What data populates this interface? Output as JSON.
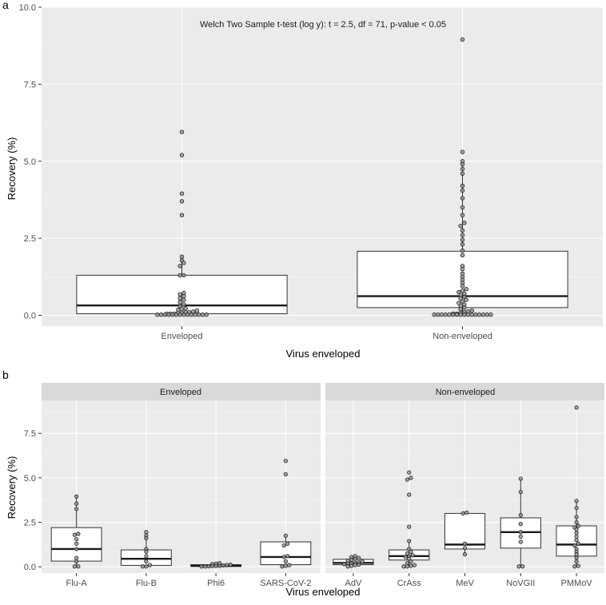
{
  "chart_data": [
    {
      "panel_label": "a",
      "type": "boxplot",
      "title": "",
      "annotation": "Welch Two Sample t-test (log y): t = 2.5, df = 71, p-value < 0.05",
      "xlabel": "Virus enveloped",
      "ylabel": "Recovery (%)",
      "ylim": [
        -0.35,
        10.0
      ],
      "yticks": [
        0.0,
        2.5,
        5.0,
        7.5,
        10.0
      ],
      "ytick_labels": [
        "0.0",
        "2.5",
        "5.0",
        "7.5",
        "10.0"
      ],
      "categories": [
        "Enveloped",
        "Non-enveloped"
      ],
      "boxes": [
        {
          "q1": 0.05,
          "median": 0.32,
          "q3": 1.3,
          "whisker_low": 0.02,
          "whisker_high": 1.9
        },
        {
          "q1": 0.25,
          "median": 0.62,
          "q3": 2.08,
          "whisker_low": 0.02,
          "whisker_high": 4.9
        }
      ],
      "points": [
        [
          0.02,
          0.02,
          0.02,
          0.02,
          0.02,
          0.02,
          0.02,
          0.02,
          0.02,
          0.02,
          0.02,
          0.02,
          0.02,
          0.02,
          0.05,
          0.05,
          0.05,
          0.08,
          0.08,
          0.1,
          0.1,
          0.12,
          0.15,
          0.18,
          0.2,
          0.22,
          0.3,
          0.35,
          0.42,
          0.5,
          0.55,
          0.62,
          0.68,
          0.72,
          1.3,
          1.3,
          1.6,
          1.7,
          1.78,
          1.9,
          3.25,
          3.7,
          3.95,
          5.2,
          5.95
        ],
        [
          0.02,
          0.02,
          0.02,
          0.02,
          0.02,
          0.02,
          0.02,
          0.02,
          0.02,
          0.02,
          0.02,
          0.02,
          0.02,
          0.02,
          0.02,
          0.02,
          0.05,
          0.05,
          0.08,
          0.1,
          0.12,
          0.15,
          0.2,
          0.25,
          0.3,
          0.35,
          0.4,
          0.45,
          0.5,
          0.55,
          0.6,
          0.65,
          0.7,
          0.75,
          0.8,
          0.85,
          0.95,
          1.05,
          1.15,
          1.25,
          1.35,
          1.5,
          1.6,
          1.95,
          2.1,
          2.3,
          2.45,
          2.6,
          2.75,
          2.9,
          3.0,
          3.25,
          3.5,
          3.8,
          4.05,
          4.2,
          4.6,
          4.75,
          4.9,
          5.0,
          5.3,
          8.95
        ]
      ]
    },
    {
      "panel_label": "b",
      "type": "boxplot",
      "title": "",
      "xlabel": "Virus enveloped",
      "ylabel": "Recovery (%)",
      "ylim": [
        -0.35,
        9.35
      ],
      "yticks": [
        0.0,
        2.5,
        5.0,
        7.5
      ],
      "ytick_labels": [
        "0.0",
        "2.5",
        "5.0",
        "7.5"
      ],
      "facets": [
        {
          "strip_label": "Enveloped",
          "categories": [
            "Flu-A",
            "Flu-B",
            "Phi6",
            "SARS-CoV-2"
          ],
          "boxes": [
            {
              "q1": 0.32,
              "median": 1.0,
              "q3": 2.2,
              "whisker_low": 0.02,
              "whisker_high": 3.95
            },
            {
              "q1": 0.08,
              "median": 0.45,
              "q3": 0.95,
              "whisker_low": 0.02,
              "whisker_high": 1.9
            },
            {
              "q1": 0.02,
              "median": 0.06,
              "q3": 0.12,
              "whisker_low": 0.02,
              "whisker_high": 0.2
            },
            {
              "q1": 0.12,
              "median": 0.55,
              "q3": 1.4,
              "whisker_low": 0.02,
              "whisker_high": 1.75
            }
          ],
          "points": [
            [
              0.02,
              0.02,
              0.3,
              0.5,
              1.0,
              1.3,
              1.55,
              1.8,
              1.85,
              3.25,
              3.55,
              3.95
            ],
            [
              0.02,
              0.02,
              0.1,
              0.3,
              0.6,
              0.85,
              1.0,
              1.6,
              1.75,
              1.95
            ],
            [
              0.02,
              0.02,
              0.03,
              0.04,
              0.05,
              0.06,
              0.08,
              0.1,
              0.12,
              0.15,
              0.18,
              0.2
            ],
            [
              0.02,
              0.05,
              0.1,
              0.3,
              0.55,
              0.6,
              1.2,
              1.3,
              1.75,
              5.2,
              5.95
            ]
          ]
        },
        {
          "strip_label": "Non-enveloped",
          "categories": [
            "AdV",
            "CrAss",
            "MeV",
            "NoVGII",
            "PMMoV"
          ],
          "boxes": [
            {
              "q1": 0.12,
              "median": 0.22,
              "q3": 0.42,
              "whisker_low": 0.02,
              "whisker_high": 0.6
            },
            {
              "q1": 0.38,
              "median": 0.6,
              "q3": 0.95,
              "whisker_low": 0.02,
              "whisker_high": 1.45
            },
            {
              "q1": 1.0,
              "median": 1.25,
              "q3": 3.0,
              "whisker_low": 0.7,
              "whisker_high": 3.05
            },
            {
              "q1": 1.05,
              "median": 1.95,
              "q3": 2.75,
              "whisker_low": 0.02,
              "whisker_high": 4.95
            },
            {
              "q1": 0.6,
              "median": 1.25,
              "q3": 2.3,
              "whisker_low": 0.02,
              "whisker_high": 3.7
            }
          ],
          "points": [
            [
              0.02,
              0.05,
              0.1,
              0.12,
              0.15,
              0.18,
              0.2,
              0.22,
              0.25,
              0.3,
              0.35,
              0.4,
              0.45,
              0.5,
              0.55,
              0.6
            ],
            [
              0.02,
              0.02,
              0.05,
              0.1,
              0.2,
              0.3,
              0.45,
              0.55,
              0.6,
              0.65,
              0.75,
              0.85,
              1.0,
              1.45,
              2.25,
              4.05,
              4.9,
              5.0,
              5.3
            ],
            [
              0.7,
              1.05,
              1.3,
              3.0,
              3.05
            ],
            [
              0.02,
              0.02,
              1.4,
              1.7,
              1.95,
              2.4,
              2.9,
              4.2,
              4.95
            ],
            [
              0.02,
              0.05,
              0.3,
              0.5,
              0.7,
              0.85,
              1.0,
              1.2,
              1.3,
              1.5,
              1.7,
              1.9,
              2.1,
              2.2,
              2.3,
              2.5,
              2.8,
              3.3,
              3.7,
              8.95
            ]
          ]
        }
      ]
    }
  ]
}
